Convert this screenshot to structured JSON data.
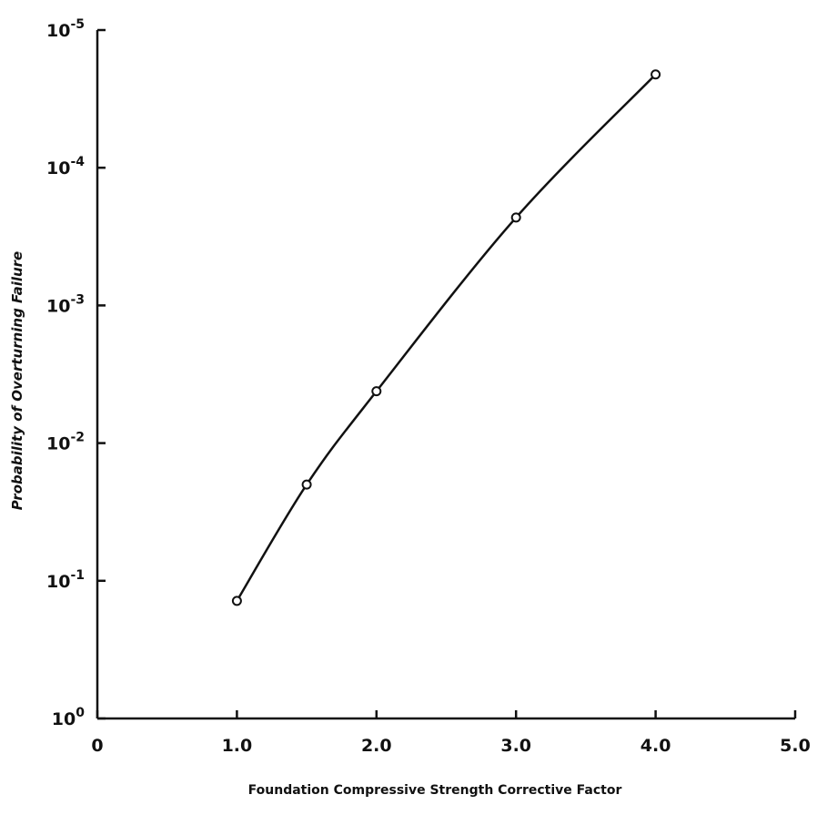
{
  "chart_data": {
    "type": "line",
    "title": "",
    "xlabel": "Foundation Compressive Strength Corrective Factor",
    "ylabel": "Probability of Overturning Failure",
    "xlim": [
      0,
      5.0
    ],
    "x_ticks": [
      {
        "value": 0,
        "label": "0"
      },
      {
        "value": 1.0,
        "label": "1.0"
      },
      {
        "value": 2.0,
        "label": "2.0"
      },
      {
        "value": 3.0,
        "label": "3.0"
      },
      {
        "value": 4.0,
        "label": "4.0"
      },
      {
        "value": 5.0,
        "label": "5.0"
      }
    ],
    "y_scale": "log",
    "y_axis_direction": "decreasing upward",
    "y_ticks": [
      {
        "value": 1,
        "base": "10",
        "exp": "0"
      },
      {
        "value": 0.1,
        "base": "10",
        "exp": "-1"
      },
      {
        "value": 0.01,
        "base": "10",
        "exp": "-2"
      },
      {
        "value": 0.001,
        "base": "10",
        "exp": "-3"
      },
      {
        "value": 0.0001,
        "base": "10",
        "exp": "-4"
      },
      {
        "value": 1e-05,
        "base": "10",
        "exp": "-5"
      }
    ],
    "grid": false,
    "legend": "none",
    "line_color": "#111111",
    "x": [
      1.0,
      1.5,
      2.0,
      3.0,
      4.0
    ],
    "y": [
      0.14,
      0.02,
      0.0042,
      0.00023,
      2.1e-05
    ]
  }
}
